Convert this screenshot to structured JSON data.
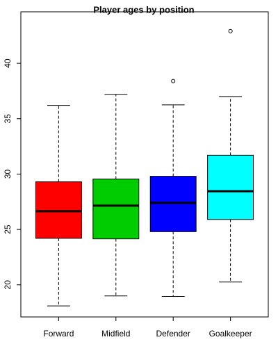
{
  "chart_data": {
    "type": "box",
    "title": "Player ages by position",
    "categories": [
      "Forward",
      "Midfield",
      "Defender",
      "Goalkeeper"
    ],
    "boxes": [
      {
        "min": 18.1,
        "q1": 24.2,
        "median": 26.65,
        "q3": 29.3,
        "max": 36.2,
        "outliers": [],
        "color": "#ff0000"
      },
      {
        "min": 19.0,
        "q1": 24.15,
        "median": 27.15,
        "q3": 29.55,
        "max": 37.2,
        "outliers": [],
        "color": "#00cd00"
      },
      {
        "min": 18.95,
        "q1": 24.8,
        "median": 27.4,
        "q3": 29.8,
        "max": 36.25,
        "outliers": [
          38.4
        ],
        "color": "#0000ff"
      },
      {
        "min": 20.25,
        "q1": 25.9,
        "median": 28.45,
        "q3": 31.7,
        "max": 37.0,
        "outliers": [
          42.9
        ],
        "color": "#00ffff"
      }
    ],
    "ylim": [
      17.1,
      44.65
    ],
    "yticks": [
      20,
      25,
      30,
      35,
      40
    ]
  }
}
